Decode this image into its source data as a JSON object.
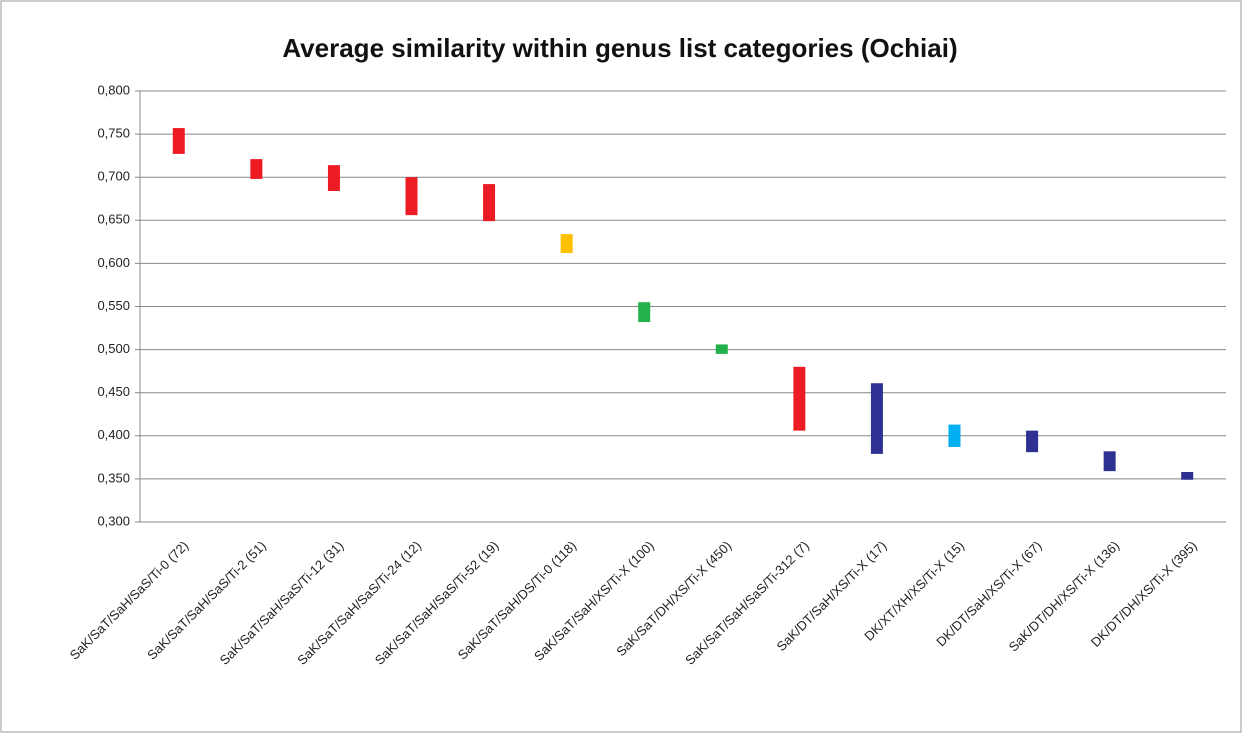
{
  "chart_data": {
    "type": "floating-bar",
    "title": "Average similarity within genus list categories (Ochiai)",
    "categories": [
      "SaK/SaT/SaH/SaS/Ti-0 (72)",
      "SaK/SaT/SaH/SaS/Ti-2 (51)",
      "SaK/SaT/SaH/SaS/Ti-12 (31)",
      "SaK/SaT/SaH/SaS/Ti-24 (12)",
      "SaK/SaT/SaH/SaS/Ti-52 (19)",
      "SaK/SaT/SaH/DS/Ti-0 (118)",
      "SaK/SaT/SaH/XS/Ti-X (100)",
      "SaK/SaT/DH/XS/Ti-X (450)",
      "SaK/SaT/SaH/SaS/Ti-312 (7)",
      "SaK/DT/SaH/XS/Ti-X (17)",
      "DK/XT/XH/XS/Ti-X (15)",
      "DK/DT/SaH/XS/Ti-X (67)",
      "SaK/DT/DH/XS/Ti-X (136)",
      "DK/DT/DH/XS/Ti-X (395)"
    ],
    "high": [
      0.757,
      0.721,
      0.714,
      0.7,
      0.692,
      0.634,
      0.555,
      0.506,
      0.48,
      0.461,
      0.413,
      0.406,
      0.382,
      0.358
    ],
    "low": [
      0.727,
      0.698,
      0.684,
      0.656,
      0.649,
      0.612,
      0.532,
      0.495,
      0.406,
      0.379,
      0.387,
      0.381,
      0.359,
      0.349
    ],
    "colors": [
      "#ed1c24",
      "#ed1c24",
      "#ed1c24",
      "#ed1c24",
      "#ed1c24",
      "#ffc000",
      "#22b14c",
      "#22b14c",
      "#ed1c24",
      "#2e3192",
      "#00b0f0",
      "#2e3192",
      "#2e3192",
      "#2e3192"
    ],
    "ylim": [
      0.3,
      0.8
    ],
    "yticks": [
      {
        "value": 0.3,
        "label": "0,300"
      },
      {
        "value": 0.35,
        "label": "0,350"
      },
      {
        "value": 0.4,
        "label": "0,400"
      },
      {
        "value": 0.45,
        "label": "0,450"
      },
      {
        "value": 0.5,
        "label": "0,500"
      },
      {
        "value": 0.55,
        "label": "0,550"
      },
      {
        "value": 0.6,
        "label": "0,600"
      },
      {
        "value": 0.65,
        "label": "0,650"
      },
      {
        "value": 0.7,
        "label": "0,700"
      },
      {
        "value": 0.75,
        "label": "0,750"
      },
      {
        "value": 0.8,
        "label": "0,800"
      }
    ],
    "grid": true
  }
}
